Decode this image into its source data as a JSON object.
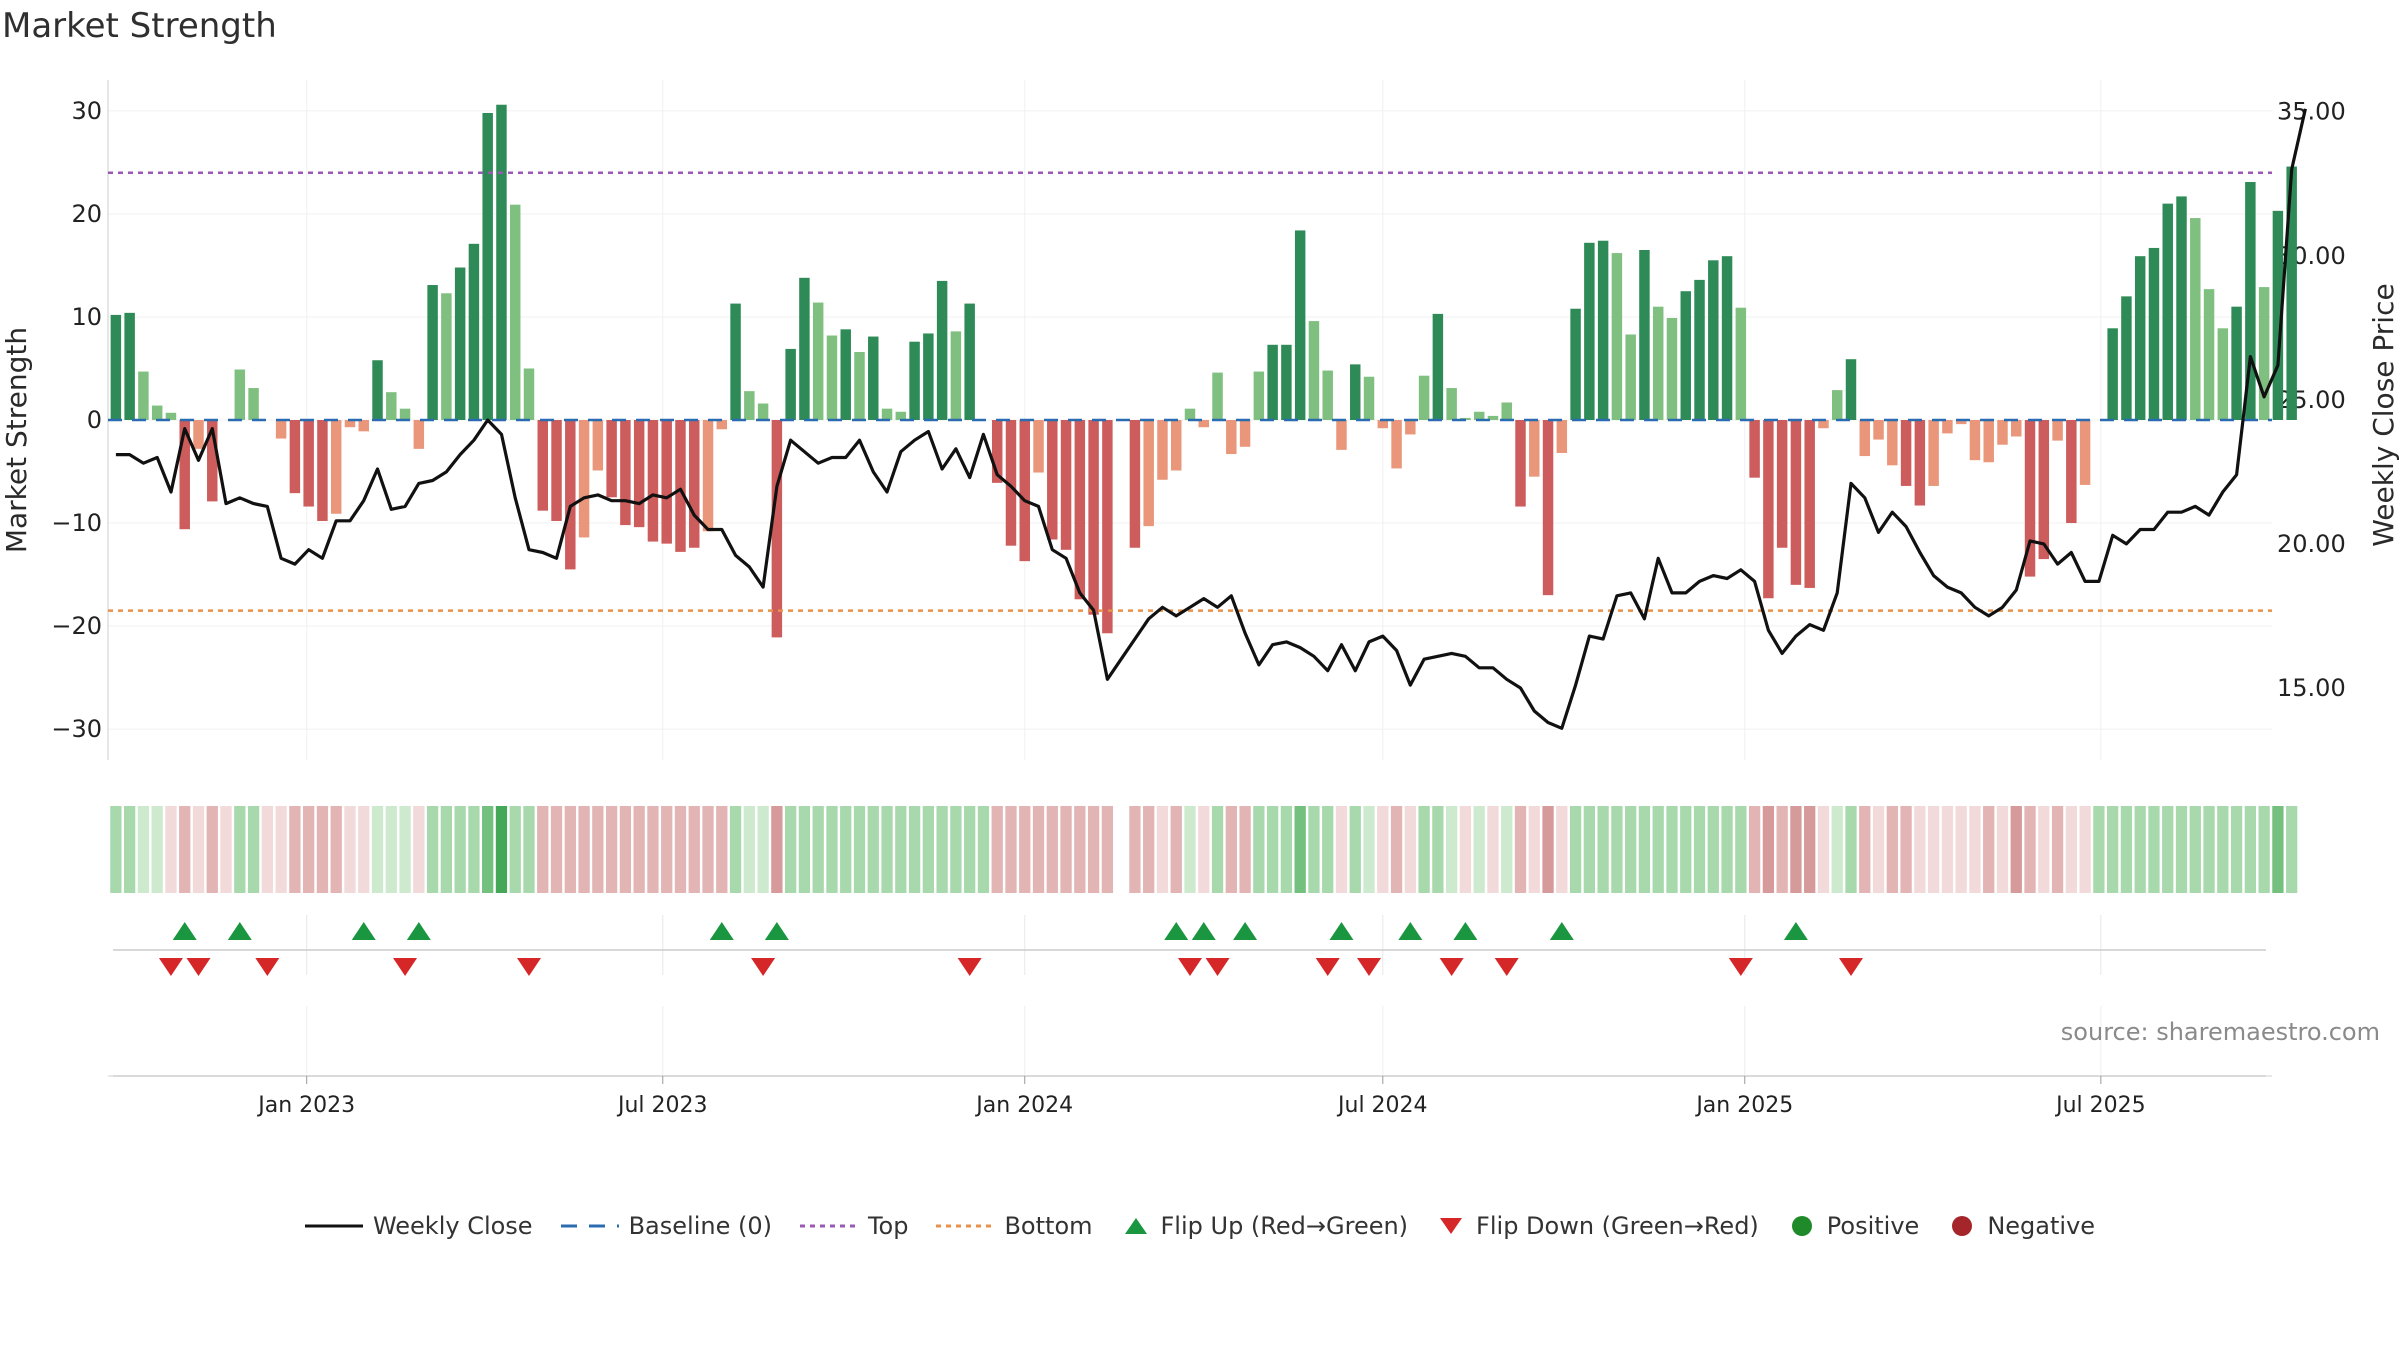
{
  "chart_data": {
    "type": "bar",
    "title": "Market Strength",
    "ylabel": "Market Strength",
    "y2label": "Weekly Close Price",
    "ylim": [
      -33,
      33
    ],
    "y2lim": [
      12.5,
      36.1
    ],
    "yticks": [
      "30",
      "20",
      "10",
      "0",
      "−30"
    ],
    "yticks_values": [
      30,
      20,
      10,
      0,
      -30
    ],
    "yticks_extra": [
      {
        "label": "−10",
        "value": -10
      },
      {
        "label": "−20",
        "value": -20
      }
    ],
    "y2ticks": [
      {
        "label": "35.00",
        "value": 35
      },
      {
        "label": "30.00",
        "value": 30
      },
      {
        "label": "25.00",
        "value": 25
      },
      {
        "label": "20.00",
        "value": 20
      },
      {
        "label": "15.00",
        "value": 15
      }
    ],
    "x_start": "2022-09-26",
    "x_range": [
      "2022-09-22",
      "2025-09-26"
    ],
    "xticks": [
      {
        "label": "Jan 2023",
        "date": "2023-01-01"
      },
      {
        "label": "Jul 2023",
        "date": "2023-07-01"
      },
      {
        "label": "Jan 2024",
        "date": "2024-01-01"
      },
      {
        "label": "Jul 2024",
        "date": "2024-07-01"
      },
      {
        "label": "Jan 2025",
        "date": "2025-01-01"
      },
      {
        "label": "Jul 2025",
        "date": "2025-07-01"
      }
    ],
    "top_line": 24,
    "bottom_line": -18.5,
    "strength": [
      10.2,
      10.4,
      4.7,
      1.4,
      0.7,
      -10.6,
      -2.8,
      -7.9,
      0,
      4.9,
      3.1,
      0,
      -1.8,
      -7.1,
      -8.4,
      -9.8,
      -9.1,
      -0.7,
      -1.1,
      5.8,
      2.7,
      1.1,
      -2.8,
      13.1,
      12.3,
      14.8,
      17.1,
      29.8,
      30.6,
      20.9,
      5,
      -8.8,
      -9.8,
      -14.5,
      -11.4,
      -4.9,
      -7.5,
      -10.2,
      -10.4,
      -11.8,
      -12,
      -12.8,
      -12.4,
      -10.8,
      -0.9,
      11.3,
      2.8,
      1.6,
      -21.1,
      6.9,
      13.8,
      11.4,
      8.2,
      8.8,
      6.6,
      8.1,
      1.1,
      0.8,
      7.6,
      8.4,
      13.5,
      8.6,
      11.3,
      0,
      -6.1,
      -12.2,
      -13.7,
      -5.1,
      -11.6,
      -12.6,
      -17.4,
      -18.9,
      -20.7,
      0,
      -12.4,
      -10.3,
      -5.8,
      -4.9,
      1.1,
      -0.7,
      4.6,
      -3.3,
      -2.6,
      4.7,
      7.3,
      7.3,
      18.4,
      9.6,
      4.8,
      -2.9,
      5.4,
      4.2,
      -0.8,
      -4.7,
      -1.4,
      4.3,
      10.3,
      3.1,
      0.2,
      0.8,
      0.4,
      1.7,
      -8.4,
      -5.5,
      -17,
      -3.2,
      10.8,
      17.2,
      17.4,
      16.2,
      8.3,
      16.5,
      11,
      9.9,
      12.5,
      13.6,
      15.5,
      15.9,
      10.9,
      -5.6,
      -17.3,
      -12.4,
      -16,
      -16.3,
      -0.8,
      2.9,
      5.9,
      -3.5,
      -1.9,
      -4.4,
      -6.4,
      -8.3,
      -6.4,
      -1.3,
      -0.4,
      -3.9,
      -4.1,
      -2.4,
      -1.6,
      -15.2,
      -13.5,
      -2,
      -10,
      -6.3,
      0,
      8.9,
      12,
      15.9,
      16.7,
      21,
      21.7,
      19.6,
      12.7,
      8.9,
      11,
      23.1,
      12.9,
      20.3,
      24.6
    ],
    "close": [
      23.1,
      23.1,
      22.8,
      23,
      21.8,
      24,
      22.9,
      24,
      21.4,
      21.6,
      21.4,
      21.3,
      19.5,
      19.3,
      19.8,
      19.5,
      20.8,
      20.8,
      21.5,
      22.6,
      21.2,
      21.3,
      22.1,
      22.2,
      22.5,
      23.1,
      23.6,
      24.3,
      23.8,
      21.6,
      19.8,
      19.7,
      19.5,
      21.3,
      21.6,
      21.7,
      21.5,
      21.5,
      21.4,
      21.7,
      21.6,
      21.9,
      21,
      20.5,
      20.5,
      19.6,
      19.2,
      18.5,
      22,
      23.6,
      23.2,
      22.8,
      23,
      23,
      23.6,
      22.5,
      21.8,
      23.2,
      23.6,
      23.9,
      22.6,
      23.3,
      22.3,
      23.8,
      22.4,
      22,
      21.5,
      21.3,
      19.8,
      19.5,
      18.3,
      17.7,
      15.3,
      16,
      16.7,
      17.4,
      17.8,
      17.5,
      17.8,
      18.1,
      17.8,
      18.2,
      16.9,
      15.8,
      16.5,
      16.6,
      16.4,
      16.1,
      15.6,
      16.5,
      15.6,
      16.6,
      16.8,
      16.3,
      15.1,
      16,
      16.1,
      16.2,
      16.1,
      15.7,
      15.7,
      15.3,
      15,
      14.2,
      13.8,
      13.6,
      15.1,
      16.8,
      16.7,
      18.2,
      18.3,
      17.4,
      19.5,
      18.3,
      18.3,
      18.7,
      18.9,
      18.8,
      19.1,
      18.7,
      17,
      16.2,
      16.8,
      17.2,
      17,
      18.3,
      22.1,
      21.6,
      20.4,
      21.1,
      20.6,
      19.7,
      18.9,
      18.5,
      18.3,
      17.8,
      17.5,
      17.8,
      18.4,
      20.1,
      20,
      19.3,
      19.7,
      18.7,
      18.7,
      20.3,
      20,
      20.5,
      20.5,
      21.1,
      21.1,
      21.3,
      21,
      21.8,
      22.4,
      26.5,
      25.1,
      26.2,
      33,
      35.1
    ],
    "heat_shades": [
      "#cdeacf",
      "#a8d9ad",
      "#74c07f",
      "#44a858",
      "#c1e5c6",
      "#a2d2a8",
      "#e8c7c7",
      "#e2b4b4",
      "#d69a9a",
      "#f2dada"
    ],
    "heat_shade_index": [
      1,
      1,
      0,
      0,
      9,
      7,
      9,
      7,
      9,
      1,
      1,
      9,
      9,
      7,
      7,
      7,
      7,
      9,
      9,
      0,
      0,
      0,
      9,
      1,
      1,
      1,
      1,
      2,
      3,
      1,
      1,
      7,
      7,
      7,
      7,
      7,
      7,
      7,
      7,
      7,
      7,
      7,
      7,
      7,
      7,
      1,
      0,
      0,
      8,
      1,
      1,
      1,
      1,
      1,
      1,
      1,
      1,
      1,
      1,
      1,
      1,
      1,
      1,
      1,
      7,
      7,
      7,
      7,
      7,
      7,
      7,
      7,
      7,
      -1,
      7,
      7,
      9,
      7,
      0,
      9,
      1,
      7,
      7,
      1,
      1,
      1,
      2,
      1,
      1,
      9,
      1,
      0,
      9,
      7,
      9,
      1,
      1,
      0,
      9,
      0,
      9,
      0,
      7,
      9,
      8,
      9,
      1,
      1,
      1,
      1,
      1,
      1,
      1,
      1,
      1,
      1,
      1,
      1,
      1,
      7,
      8,
      7,
      8,
      8,
      9,
      0,
      1,
      7,
      9,
      7,
      7,
      9,
      9,
      9,
      9,
      9,
      7,
      9,
      8,
      7,
      9,
      7,
      9,
      9,
      1,
      1,
      1,
      1,
      1,
      1,
      1,
      1,
      1,
      1,
      1,
      1,
      1,
      2,
      1
    ],
    "flip_up_idx": [
      5,
      9,
      18,
      22,
      44,
      48,
      77,
      79,
      82,
      89,
      94,
      98,
      105,
      122
    ],
    "flip_down_idx": [
      4,
      6,
      11,
      21,
      30,
      47,
      62,
      78,
      80,
      88,
      91,
      97,
      101,
      118,
      126
    ],
    "source": "source: sharemaestro.com",
    "legend": [
      {
        "label": "Weekly Close",
        "kind": "line",
        "color": "#111111"
      },
      {
        "label": "Baseline (0)",
        "kind": "dash",
        "color": "#2b6cb0"
      },
      {
        "label": "Top",
        "kind": "dot",
        "color": "#9b59b6"
      },
      {
        "label": "Bottom",
        "kind": "dot",
        "color": "#e8914a"
      },
      {
        "label": "Flip Up (Red→Green)",
        "kind": "tri-up",
        "color": "#1a9641"
      },
      {
        "label": "Flip Down (Green→Red)",
        "kind": "tri-down",
        "color": "#d62728"
      },
      {
        "label": "Positive",
        "kind": "circle",
        "color": "#1f8a2a"
      },
      {
        "label": "Negative",
        "kind": "circle",
        "color": "#a5262a"
      }
    ],
    "colors": {
      "pos_strong": "#2e8b57",
      "pos_weak": "#7fbf7f",
      "neg_strong": "#cd5c5c",
      "neg_weak": "#e9967a",
      "baseline": "#2b6cb0",
      "top": "#9b59b6",
      "bottom": "#e8914a",
      "close": "#111111",
      "flip_up": "#1a9641",
      "flip_down": "#d62728"
    }
  }
}
